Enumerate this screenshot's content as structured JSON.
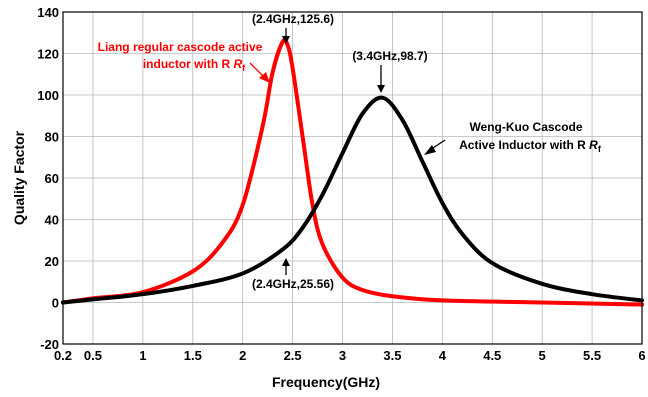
{
  "chart_data": {
    "type": "line",
    "xlabel": "Frequency(GHz)",
    "ylabel": "Quality Factor",
    "xlim": [
      0.2,
      6
    ],
    "ylim": [
      -20,
      140
    ],
    "x_ticks": [
      0.2,
      0.5,
      1,
      1.5,
      2,
      2.5,
      3,
      3.5,
      4,
      4.5,
      5,
      5.5,
      6
    ],
    "x_tick_labels": [
      "0.2",
      "0.5",
      "1",
      "1.5",
      "2",
      "2.5",
      "3",
      "3.5",
      "4",
      "4.5",
      "5",
      "5.5",
      "6"
    ],
    "y_ticks": [
      -20,
      0,
      20,
      40,
      60,
      80,
      100,
      120,
      140
    ],
    "y_tick_labels": [
      "-20",
      "0",
      "20",
      "40",
      "60",
      "80",
      "100",
      "120",
      "140"
    ],
    "grid": true,
    "series": [
      {
        "name": "Liang regular cascode active inductor with R",
        "name_subscript": "f",
        "color": "#ff0000",
        "peak": {
          "x": 2.42,
          "y": 125.6
        },
        "x": [
          0.2,
          0.5,
          1.0,
          1.5,
          1.8,
          2.0,
          2.2,
          2.3,
          2.4,
          2.45,
          2.5,
          2.6,
          2.7,
          2.8,
          3.0,
          3.2,
          3.5,
          4.0,
          5.0,
          6.0
        ],
        "y": [
          0,
          2,
          5,
          15,
          29,
          47,
          85,
          111,
          125.6,
          124,
          113,
          80,
          47,
          28,
          12,
          6,
          3,
          1,
          0,
          -1
        ]
      },
      {
        "name": "Weng-Kuo Cascode Active Inductor with R",
        "name_subscript": "f",
        "color": "#000000",
        "peak": {
          "x": 3.4,
          "y": 98.7
        },
        "x": [
          0.2,
          0.5,
          1.0,
          1.5,
          2.0,
          2.4,
          2.6,
          2.8,
          3.0,
          3.2,
          3.4,
          3.6,
          3.8,
          4.0,
          4.2,
          4.5,
          5.0,
          5.5,
          6.0
        ],
        "y": [
          0,
          1.5,
          4,
          8,
          14,
          25.56,
          36,
          52,
          72,
          91,
          98.7,
          88,
          68,
          48,
          33,
          19,
          9,
          4,
          1
        ]
      }
    ],
    "annotations": [
      {
        "text": "(2.4GHz,125.6)"
      },
      {
        "text": "(3.4GHz,98.7)"
      },
      {
        "text": "(2.4GHz,25.56)"
      }
    ],
    "legend_labels": {
      "liang_line1": "Liang regular cascode active",
      "liang_line2": "inductor with R",
      "weng_line1": "Weng-Kuo Cascode",
      "weng_line2": "Active Inductor with R",
      "subscript": "f"
    }
  }
}
